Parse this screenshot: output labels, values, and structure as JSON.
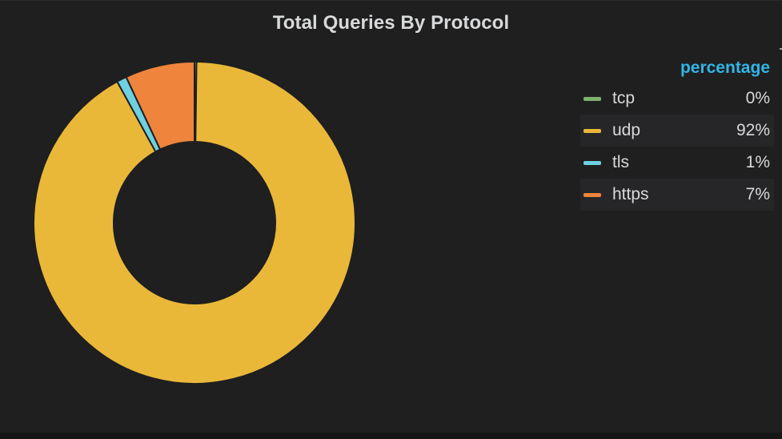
{
  "panel": {
    "title": "Total Queries By Protocol"
  },
  "legend": {
    "header": "percentage",
    "placement": "right"
  },
  "chart_data": {
    "type": "pie",
    "donut": true,
    "title": "Total Queries By Protocol",
    "series": [
      {
        "name": "tcp",
        "label": "0%",
        "value": 0.2,
        "color": "#7eb26d"
      },
      {
        "name": "udp",
        "label": "92%",
        "value": 92,
        "color": "#eab839"
      },
      {
        "name": "tls",
        "label": "1%",
        "value": 1,
        "color": "#6ed0e0"
      },
      {
        "name": "https",
        "label": "7%",
        "value": 7,
        "color": "#ef843c"
      }
    ]
  }
}
